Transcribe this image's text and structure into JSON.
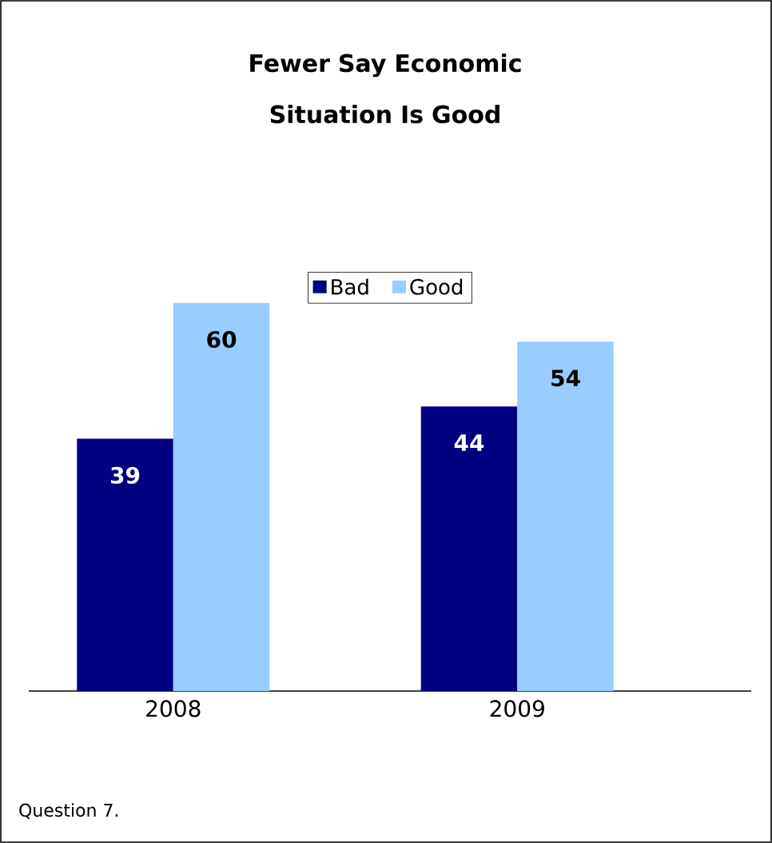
{
  "chart_data": {
    "type": "bar",
    "title": "Fewer Say Economic Situation Is Good",
    "categories": [
      "2008",
      "2009"
    ],
    "series": [
      {
        "name": "Bad",
        "color": "#000080",
        "values": [
          39,
          44
        ]
      },
      {
        "name": "Good",
        "color": "#99ccff",
        "values": [
          60,
          54
        ]
      }
    ],
    "data_labels": true,
    "legend": "top",
    "annotations": [
      "Question 7."
    ]
  }
}
